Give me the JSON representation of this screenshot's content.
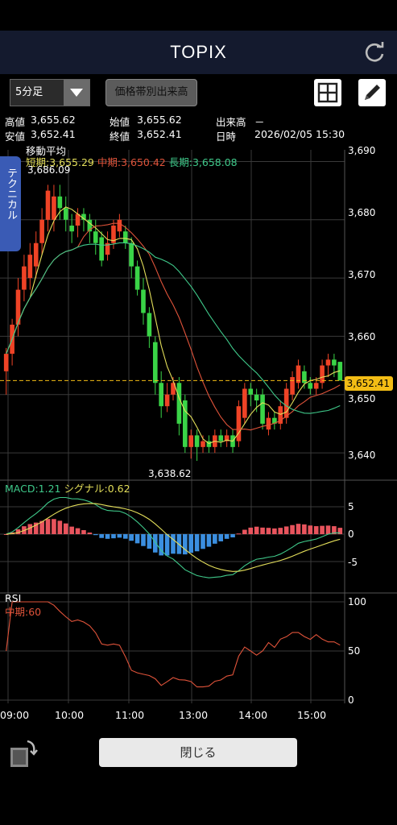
{
  "header": {
    "title": "TOPIX"
  },
  "toolbar": {
    "interval": "5分足",
    "volume_profile_label": "価格帯別出来高"
  },
  "quote": {
    "high_label": "高値",
    "high": "3,655.62",
    "low_label": "安値",
    "low": "3,652.41",
    "open_label": "始値",
    "open": "3,655.62",
    "close_label": "終値",
    "close": "3,652.41",
    "volume_label": "出来高",
    "volume": "－",
    "datetime_label": "日時",
    "datetime": "2026/02/05 15:30"
  },
  "technical_tab": "テクニカル",
  "moving_average": {
    "title": "移動平均",
    "short": "短期:3,655.29",
    "mid": "中期:3,650.42",
    "long": "長期:3,658.08"
  },
  "price_axis": {
    "labels": [
      "3,690",
      "3,680",
      "3,670",
      "3,660",
      "3,650",
      "3,640"
    ],
    "current": "3,652.41"
  },
  "annotations": {
    "high": "3,686.09",
    "low": "3,638.62"
  },
  "macd": {
    "macd": "MACD:1.21",
    "signal": "シグナル:0.62",
    "axis": [
      "5",
      "0",
      "-5"
    ]
  },
  "rsi": {
    "title": "RSI",
    "mid": "中期:60",
    "axis": [
      "100",
      "50",
      "0"
    ]
  },
  "time_axis": [
    "09:00",
    "10:00",
    "11:00",
    "13:00",
    "14:00",
    "15:00"
  ],
  "footer": {
    "close_label": "閉じる"
  },
  "colors": {
    "up": "#ef4326",
    "down": "#3ad447",
    "short_ma": "#e4df5a",
    "mid_ma": "#e0533a",
    "long_ma": "#3fc98a",
    "hist_pos": "#e8545d",
    "hist_neg": "#3b8fe0",
    "accent_tag": "#f3bd15"
  },
  "chart_data": {
    "type": "candlestick",
    "ylim": [
      3636,
      3692
    ],
    "candles": [
      [
        3657,
        3654,
        3658,
        3650
      ],
      [
        3662,
        3657,
        3663,
        3655
      ],
      [
        3668,
        3662,
        3670,
        3660
      ],
      [
        3672,
        3668,
        3674,
        3666
      ],
      [
        3674,
        3670,
        3676,
        3668
      ],
      [
        3676,
        3672,
        3678,
        3670
      ],
      [
        3680,
        3676,
        3682,
        3674
      ],
      [
        3685,
        3680,
        3686,
        3678
      ],
      [
        3684,
        3680,
        3686,
        3678
      ],
      [
        3682,
        3684,
        3686,
        3680
      ],
      [
        3680,
        3682,
        3684,
        3678
      ],
      [
        3678,
        3679,
        3681,
        3676
      ],
      [
        3681,
        3679,
        3682,
        3677
      ],
      [
        3680,
        3681,
        3682,
        3678
      ],
      [
        3678,
        3680,
        3681,
        3676
      ],
      [
        3676,
        3678,
        3680,
        3674
      ],
      [
        3673,
        3677,
        3678,
        3672
      ],
      [
        3676,
        3674,
        3678,
        3673
      ],
      [
        3679,
        3676,
        3680,
        3675
      ],
      [
        3680,
        3678,
        3681,
        3677
      ],
      [
        3676,
        3678,
        3679,
        3675
      ],
      [
        3672,
        3676,
        3677,
        3670
      ],
      [
        3668,
        3672,
        3673,
        3667
      ],
      [
        3664,
        3668,
        3670,
        3662
      ],
      [
        3660,
        3664,
        3665,
        3658
      ],
      [
        3652,
        3659,
        3660,
        3650
      ],
      [
        3648,
        3652,
        3654,
        3646
      ],
      [
        3650,
        3648,
        3652,
        3647
      ],
      [
        3652,
        3650,
        3653,
        3649
      ],
      [
        3645,
        3652,
        3653,
        3643
      ],
      [
        3641,
        3649,
        3650,
        3640
      ],
      [
        3643,
        3641,
        3644,
        3639
      ],
      [
        3641,
        3643,
        3644,
        3638.62
      ],
      [
        3642,
        3641,
        3643,
        3640
      ],
      [
        3641,
        3642,
        3643,
        3640
      ],
      [
        3643,
        3641,
        3644,
        3640
      ],
      [
        3642,
        3643,
        3644,
        3641
      ],
      [
        3643,
        3642,
        3644,
        3641
      ],
      [
        3641,
        3643,
        3644,
        3640
      ],
      [
        3648,
        3642,
        3649,
        3641
      ],
      [
        3651,
        3646,
        3652,
        3645
      ],
      [
        3650,
        3651,
        3652,
        3648
      ],
      [
        3649,
        3650,
        3651,
        3647
      ],
      [
        3645,
        3650,
        3651,
        3644
      ],
      [
        3646,
        3644,
        3647,
        3643
      ],
      [
        3645,
        3646,
        3647,
        3644
      ],
      [
        3648,
        3645,
        3649,
        3644
      ],
      [
        3651,
        3646,
        3652,
        3645
      ],
      [
        3653,
        3650,
        3654,
        3649
      ],
      [
        3655,
        3652,
        3656,
        3651
      ],
      [
        3652,
        3654,
        3655,
        3651
      ],
      [
        3651,
        3652,
        3653,
        3650
      ],
      [
        3652,
        3651,
        3653,
        3650
      ],
      [
        3655,
        3652,
        3656,
        3651
      ],
      [
        3656,
        3655,
        3657,
        3653
      ],
      [
        3655,
        3656,
        3657,
        3653
      ],
      [
        3652.41,
        3655.62,
        3655.62,
        3652.41
      ]
    ],
    "time_axis": [
      "09:00",
      "10:00",
      "11:00",
      "13:00",
      "14:00",
      "15:00"
    ]
  }
}
